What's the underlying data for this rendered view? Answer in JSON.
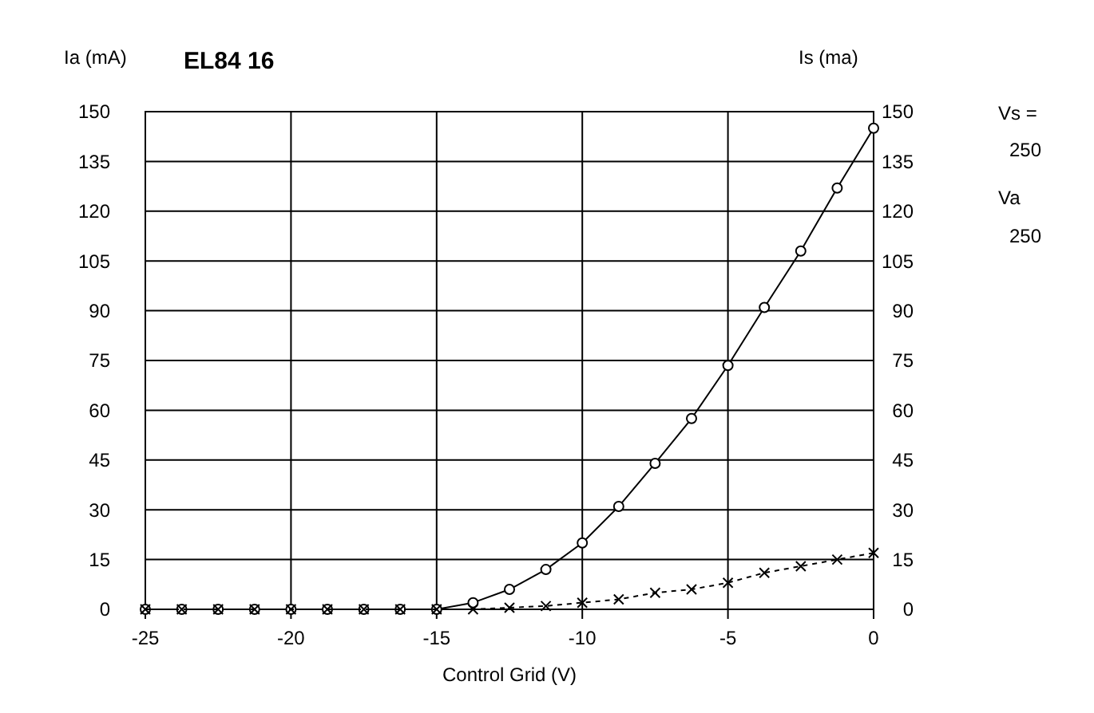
{
  "chart_data": {
    "type": "line",
    "title": "EL84 16",
    "xlabel": "Control Grid (V)",
    "ylabel": "Ia (mA)",
    "y2label": "Is (ma)",
    "x": [
      -25,
      -23.75,
      -22.5,
      -21.25,
      -20,
      -18.75,
      -17.5,
      -16.25,
      -15,
      -13.75,
      -12.5,
      -11.25,
      -10,
      -8.75,
      -7.5,
      -6.25,
      -5,
      -3.75,
      -2.5,
      -1.25,
      0
    ],
    "series": [
      {
        "color": "#000000",
        "marker": "circle",
        "line_style": "solid",
        "values": [
          0,
          0,
          0,
          0,
          0,
          0,
          0,
          0,
          0,
          2,
          6,
          12,
          20,
          31,
          44,
          57.5,
          73.5,
          91,
          108,
          127,
          145
        ]
      },
      {
        "color": "#000000",
        "marker": "cross",
        "line_style": "dashed",
        "values": [
          0,
          0,
          0,
          0,
          0,
          0,
          0,
          0,
          0,
          0,
          0.5,
          1,
          2,
          3,
          5,
          6,
          8,
          11,
          13,
          15,
          17
        ]
      }
    ],
    "xlim": [
      -25,
      0
    ],
    "xticks": [
      -25,
      -20,
      -15,
      -10,
      -5,
      0
    ],
    "ylim": [
      0,
      150
    ],
    "yticks": [
      0,
      15,
      30,
      45,
      60,
      75,
      90,
      105,
      120,
      135,
      150
    ],
    "y2lim": [
      0,
      150
    ],
    "y2ticks": [
      0,
      15,
      30,
      45,
      60,
      75,
      90,
      105,
      120,
      135,
      150
    ],
    "grid": true,
    "annotations": [
      "Vs =",
      "250",
      "Va",
      "250"
    ]
  }
}
